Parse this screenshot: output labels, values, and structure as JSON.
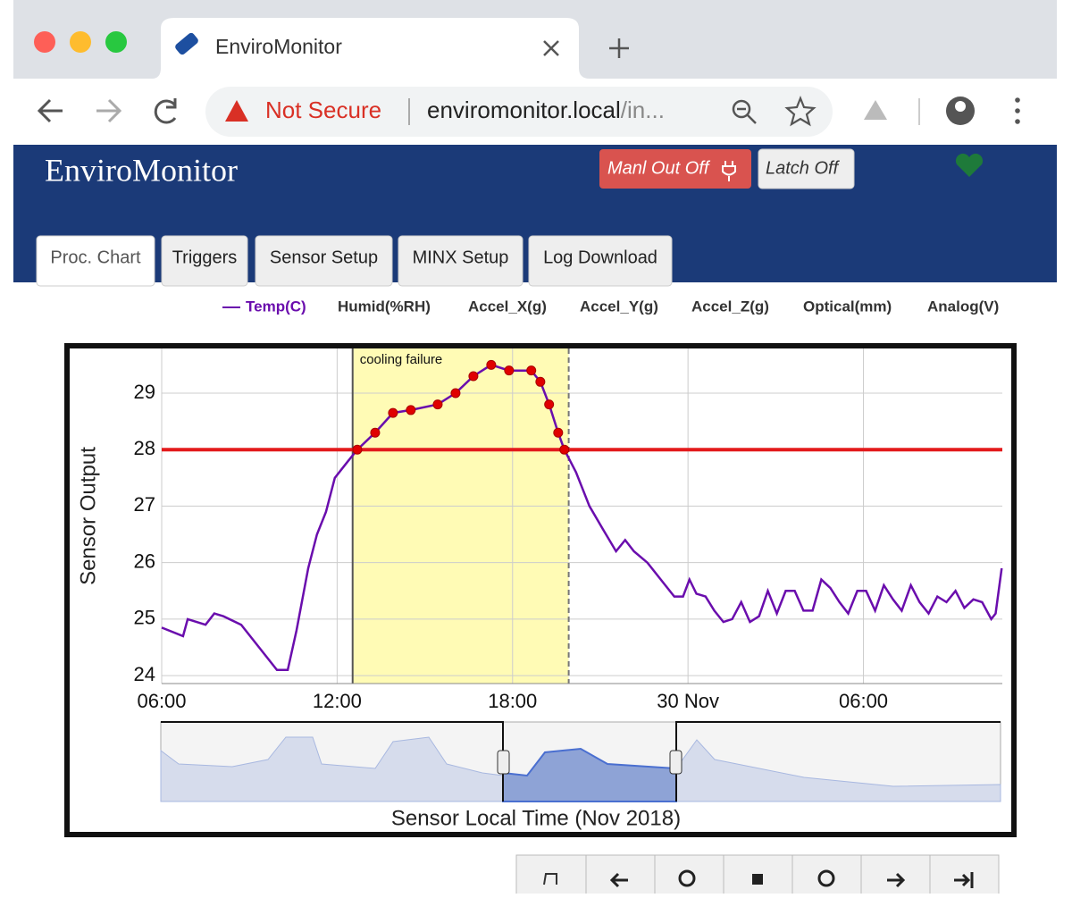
{
  "browser": {
    "tab_title": "EnviroMonitor",
    "security": "Not Secure",
    "url_host": "enviromonitor.local",
    "url_path": "/in..."
  },
  "app": {
    "title": "EnviroMonitor",
    "buttons": [
      "Manl Out Off",
      "Latch Off"
    ],
    "tabs": [
      "Proc. Chart",
      "Triggers",
      "Sensor Setup",
      "MINX Setup",
      "Log Download"
    ],
    "active_tab": 0
  },
  "chart_data": {
    "type": "line",
    "y_label": "Sensor Output",
    "x_label": "Sensor Local Time (Nov 2018)",
    "xlim": [
      6,
      34.75
    ],
    "ylim": [
      23.86,
      29.79
    ],
    "xticks": [
      {
        "value": 6,
        "label": "06:00"
      },
      {
        "value": 12,
        "label": "12:00"
      },
      {
        "value": 18,
        "label": "18:00"
      },
      {
        "value": 24,
        "label": "30 Nov"
      },
      {
        "value": 30,
        "label": "06:00"
      }
    ],
    "yticks": [
      24,
      25,
      26,
      27,
      28,
      29
    ],
    "grid": true,
    "series": [
      {
        "name": "Temp(C)",
        "color": "#6a0dad",
        "x": [
          6.0,
          6.73,
          6.89,
          7.5,
          7.8,
          8.11,
          8.72,
          9.33,
          9.94,
          10.31,
          10.61,
          11.01,
          11.31,
          11.62,
          11.92,
          12.38,
          12.69,
          13.3,
          13.91,
          14.52,
          15.44,
          16.05,
          16.66,
          17.27,
          17.88,
          18.64,
          18.95,
          19.25,
          19.56,
          19.77,
          20.17,
          20.63,
          21.08,
          21.54,
          21.85,
          22.15,
          22.61,
          23.07,
          23.53,
          23.83,
          24.05,
          24.29,
          24.6,
          24.9,
          25.21,
          25.51,
          25.82,
          26.12,
          26.43,
          26.73,
          27.04,
          27.34,
          27.65,
          27.95,
          28.26,
          28.56,
          28.87,
          29.18,
          29.48,
          29.79,
          30.09,
          30.4,
          30.7,
          31.01,
          31.31,
          31.62,
          31.92,
          32.23,
          32.53,
          32.84,
          33.15,
          33.45,
          33.76,
          34.06,
          34.37,
          34.52,
          34.73
        ],
        "values": [
          24.85,
          24.7,
          25.0,
          24.9,
          25.1,
          25.05,
          24.9,
          24.5,
          24.1,
          24.1,
          24.8,
          25.9,
          26.5,
          26.9,
          27.5,
          27.8,
          28.0,
          28.3,
          28.65,
          28.7,
          28.8,
          29.0,
          29.3,
          29.5,
          29.4,
          29.4,
          29.2,
          28.8,
          28.3,
          28.0,
          27.6,
          27.0,
          26.6,
          26.2,
          26.4,
          26.2,
          26.0,
          25.7,
          25.4,
          25.4,
          25.7,
          25.45,
          25.4,
          25.15,
          24.95,
          25.0,
          25.3,
          24.95,
          25.05,
          25.5,
          25.1,
          25.5,
          25.5,
          25.15,
          25.15,
          25.7,
          25.55,
          25.3,
          25.1,
          25.5,
          25.5,
          25.15,
          25.6,
          25.35,
          25.15,
          25.6,
          25.3,
          25.1,
          25.4,
          25.3,
          25.5,
          25.2,
          25.35,
          25.3,
          25.0,
          25.1,
          25.9
        ]
      }
    ],
    "hidden_series": [
      "Humid(%RH)",
      "Accel_X(g)",
      "Accel_Y(g)",
      "Accel_Z(g)",
      "Optical(mm)",
      "Analog(V)"
    ],
    "threshold": {
      "value": 28,
      "color": "#e31a1c"
    },
    "annotation": {
      "text": "cooling failure",
      "x": [
        12.53,
        19.92
      ],
      "color": "#fffbb5"
    },
    "alarm_color": "#e00000"
  }
}
